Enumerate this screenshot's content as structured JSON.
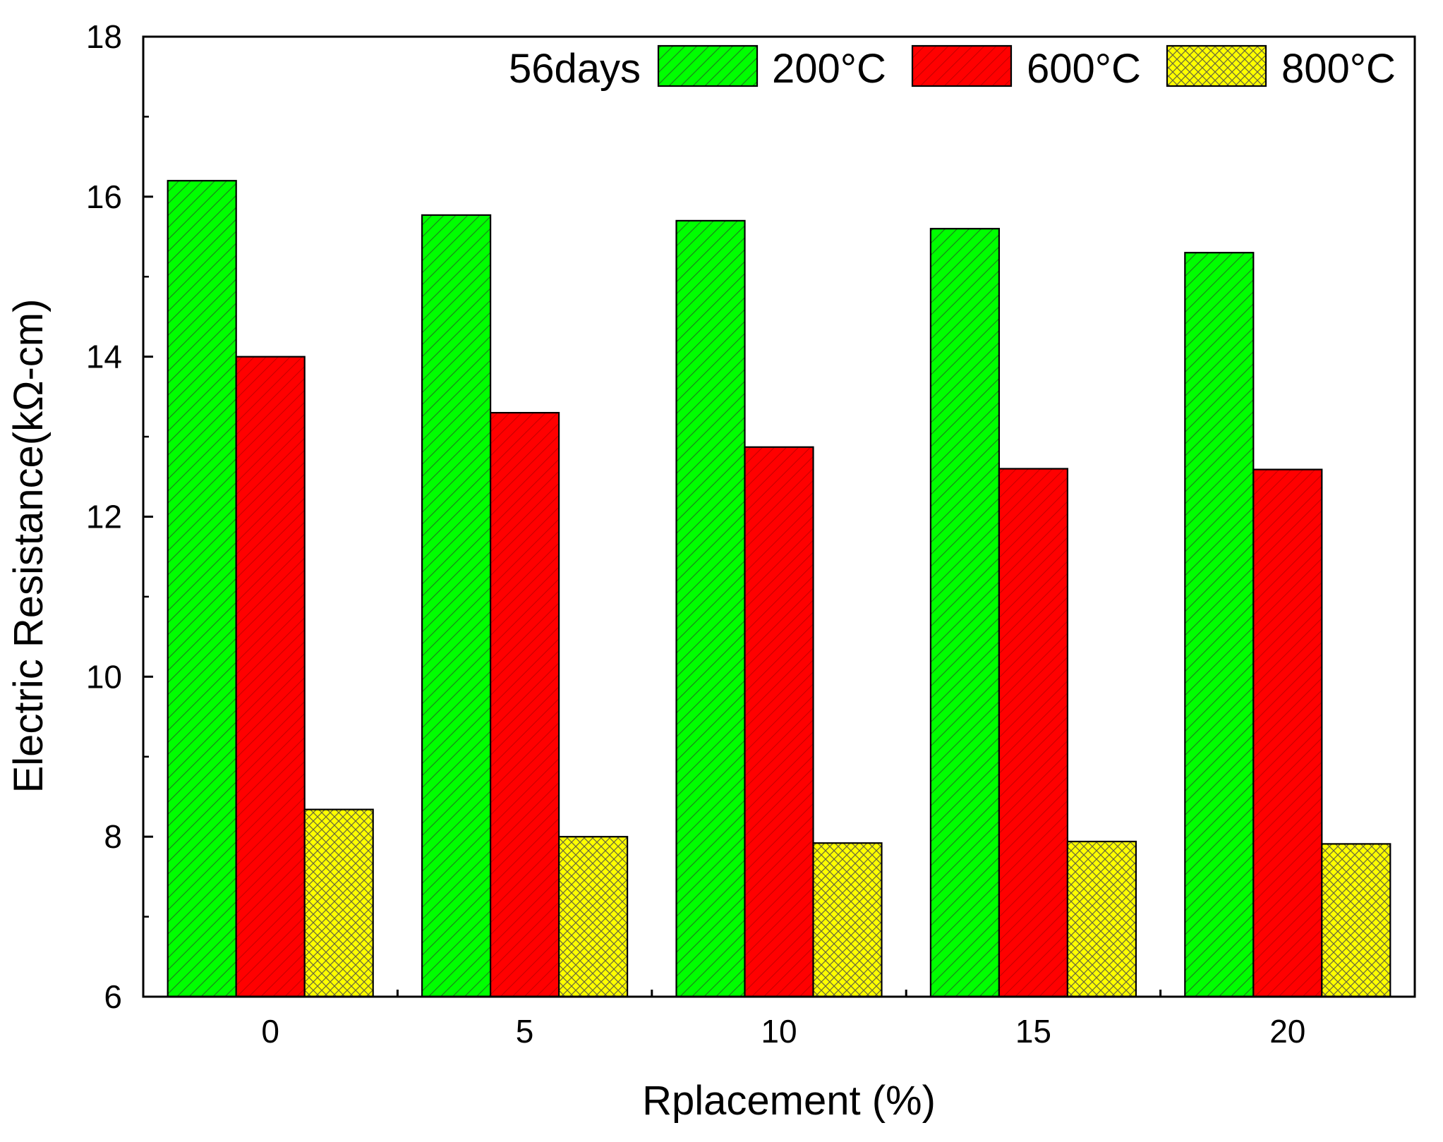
{
  "chart_data": {
    "type": "bar",
    "title": "",
    "xlabel": "Rplacement (%)",
    "ylabel": "Electric Resistance(kΩ-cm)",
    "ylim": [
      6,
      18
    ],
    "yticks": [
      "6",
      "8",
      "10",
      "12",
      "14",
      "16",
      "18"
    ],
    "categories": [
      "0",
      "5",
      "10",
      "15",
      "20"
    ],
    "legend_title": "56days",
    "legend_position": "top-right",
    "series": [
      {
        "name": "200°C",
        "values": [
          16.2,
          15.77,
          15.7,
          15.6,
          15.3
        ],
        "color": "#00ff00",
        "pattern": "diagonal-lines"
      },
      {
        "name": "600°C",
        "values": [
          14.0,
          13.3,
          12.87,
          12.6,
          12.59
        ],
        "color": "#ff0000",
        "pattern": "diagonal-lines"
      },
      {
        "name": "800°C",
        "values": [
          8.34,
          8.0,
          7.92,
          7.94,
          7.91
        ],
        "color": "#ffff00",
        "pattern": "crosshatch"
      }
    ]
  }
}
